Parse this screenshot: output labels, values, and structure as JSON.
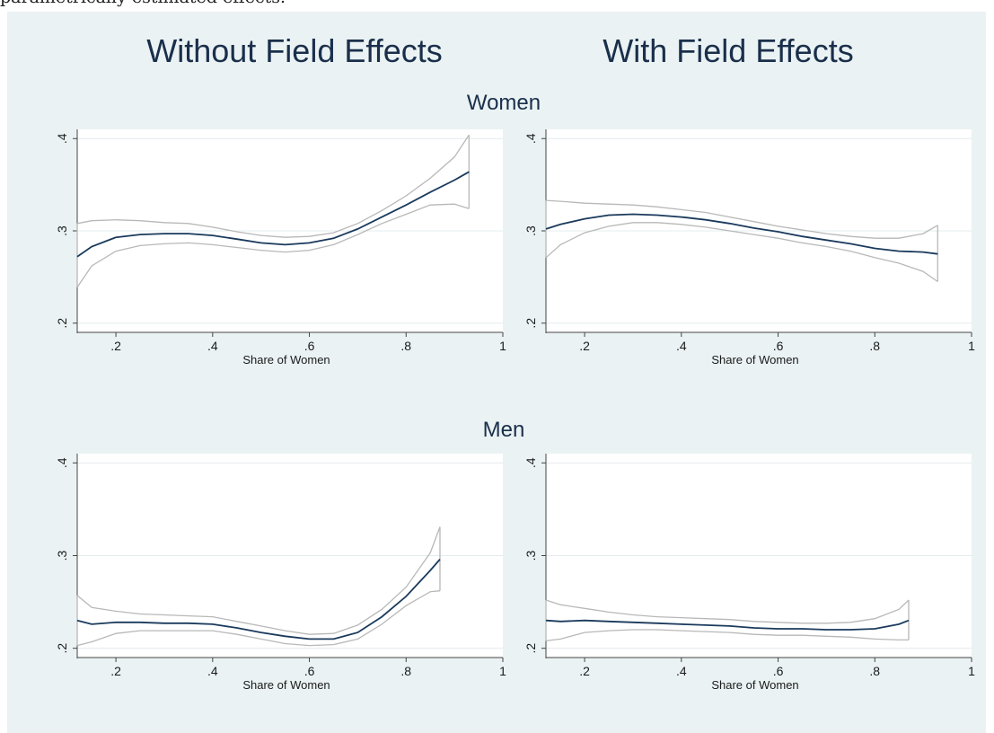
{
  "caption": "parametrically estimated effects.",
  "column_titles": [
    "Without Field Effects",
    "With Field Effects"
  ],
  "row_titles": [
    "Women",
    "Men"
  ],
  "colors": {
    "background": "#eaf2f3",
    "plot_area": "#ffffff",
    "estimate_line": "#1a3a5c",
    "ci_band": "#b8b8b8",
    "gridline": "#e4ecee",
    "axis": "#444444"
  },
  "chart_data": [
    {
      "type": "line",
      "row": "Women",
      "column": "Without Field Effects",
      "xlabel": "Share of Women",
      "xlim": [
        0.12,
        1.0
      ],
      "ylim": [
        0.19,
        0.41
      ],
      "xticks": [
        0.2,
        0.4,
        0.6,
        0.8,
        1.0
      ],
      "xtick_labels": [
        ".2",
        ".4",
        ".6",
        ".8",
        "1"
      ],
      "yticks": [
        0.2,
        0.3,
        0.4
      ],
      "ytick_labels": [
        ".2",
        ".3",
        ".4"
      ],
      "grid": true,
      "x": [
        0.12,
        0.15,
        0.2,
        0.25,
        0.3,
        0.35,
        0.4,
        0.45,
        0.5,
        0.55,
        0.6,
        0.65,
        0.7,
        0.75,
        0.8,
        0.85,
        0.9,
        0.93
      ],
      "series": [
        {
          "role": "estimate",
          "values": [
            0.272,
            0.283,
            0.293,
            0.296,
            0.297,
            0.297,
            0.295,
            0.291,
            0.287,
            0.285,
            0.287,
            0.292,
            0.302,
            0.315,
            0.328,
            0.342,
            0.355,
            0.364
          ]
        },
        {
          "role": "upper",
          "values": [
            0.308,
            0.311,
            0.312,
            0.311,
            0.309,
            0.308,
            0.304,
            0.299,
            0.295,
            0.293,
            0.294,
            0.298,
            0.308,
            0.322,
            0.338,
            0.357,
            0.38,
            0.404
          ]
        },
        {
          "role": "lower",
          "values": [
            0.239,
            0.262,
            0.278,
            0.284,
            0.286,
            0.287,
            0.285,
            0.282,
            0.279,
            0.277,
            0.279,
            0.285,
            0.296,
            0.308,
            0.318,
            0.328,
            0.329,
            0.324
          ]
        }
      ]
    },
    {
      "type": "line",
      "row": "Women",
      "column": "With Field Effects",
      "xlabel": "Share of Women",
      "xlim": [
        0.12,
        1.0
      ],
      "ylim": [
        0.19,
        0.41
      ],
      "xticks": [
        0.2,
        0.4,
        0.6,
        0.8,
        1.0
      ],
      "xtick_labels": [
        ".2",
        ".4",
        ".6",
        ".8",
        "1"
      ],
      "yticks": [
        0.2,
        0.3,
        0.4
      ],
      "ytick_labels": [
        ".2",
        ".3",
        ".4"
      ],
      "grid": true,
      "x": [
        0.12,
        0.15,
        0.2,
        0.25,
        0.3,
        0.35,
        0.4,
        0.45,
        0.5,
        0.55,
        0.6,
        0.65,
        0.7,
        0.75,
        0.8,
        0.85,
        0.9,
        0.93
      ],
      "series": [
        {
          "role": "estimate",
          "values": [
            0.302,
            0.307,
            0.313,
            0.317,
            0.318,
            0.317,
            0.315,
            0.312,
            0.308,
            0.303,
            0.299,
            0.294,
            0.29,
            0.286,
            0.281,
            0.278,
            0.277,
            0.275
          ]
        },
        {
          "role": "upper",
          "values": [
            0.333,
            0.332,
            0.33,
            0.329,
            0.328,
            0.326,
            0.323,
            0.32,
            0.315,
            0.31,
            0.305,
            0.301,
            0.297,
            0.294,
            0.292,
            0.292,
            0.297,
            0.306
          ]
        },
        {
          "role": "lower",
          "values": [
            0.271,
            0.285,
            0.298,
            0.305,
            0.309,
            0.309,
            0.307,
            0.304,
            0.3,
            0.296,
            0.292,
            0.287,
            0.283,
            0.278,
            0.271,
            0.265,
            0.256,
            0.245
          ]
        }
      ]
    },
    {
      "type": "line",
      "row": "Men",
      "column": "Without Field Effects",
      "xlabel": "Share of Women",
      "xlim": [
        0.12,
        1.0
      ],
      "ylim": [
        0.19,
        0.41
      ],
      "xticks": [
        0.2,
        0.4,
        0.6,
        0.8,
        1.0
      ],
      "xtick_labels": [
        ".2",
        ".4",
        ".6",
        ".8",
        "1"
      ],
      "yticks": [
        0.2,
        0.3,
        0.4
      ],
      "ytick_labels": [
        ".2",
        ".3",
        ".4"
      ],
      "grid": true,
      "x": [
        0.12,
        0.15,
        0.2,
        0.25,
        0.3,
        0.35,
        0.4,
        0.45,
        0.5,
        0.55,
        0.6,
        0.65,
        0.7,
        0.75,
        0.8,
        0.85,
        0.87
      ],
      "series": [
        {
          "role": "estimate",
          "values": [
            0.23,
            0.226,
            0.228,
            0.228,
            0.227,
            0.227,
            0.226,
            0.222,
            0.217,
            0.213,
            0.21,
            0.21,
            0.217,
            0.234,
            0.256,
            0.284,
            0.296
          ]
        },
        {
          "role": "upper",
          "values": [
            0.257,
            0.244,
            0.24,
            0.237,
            0.236,
            0.235,
            0.234,
            0.229,
            0.224,
            0.219,
            0.215,
            0.216,
            0.225,
            0.242,
            0.266,
            0.303,
            0.331
          ]
        },
        {
          "role": "lower",
          "values": [
            0.203,
            0.207,
            0.216,
            0.219,
            0.219,
            0.219,
            0.219,
            0.215,
            0.21,
            0.205,
            0.203,
            0.204,
            0.21,
            0.226,
            0.246,
            0.261,
            0.262
          ]
        }
      ]
    },
    {
      "type": "line",
      "row": "Men",
      "column": "With Field Effects",
      "xlabel": "Share of Women",
      "xlim": [
        0.12,
        1.0
      ],
      "ylim": [
        0.19,
        0.41
      ],
      "xticks": [
        0.2,
        0.4,
        0.6,
        0.8,
        1.0
      ],
      "xtick_labels": [
        ".2",
        ".4",
        ".6",
        ".8",
        "1"
      ],
      "yticks": [
        0.2,
        0.3,
        0.4
      ],
      "ytick_labels": [
        ".2",
        ".3",
        ".4"
      ],
      "grid": true,
      "x": [
        0.12,
        0.15,
        0.2,
        0.25,
        0.3,
        0.35,
        0.4,
        0.45,
        0.5,
        0.55,
        0.6,
        0.65,
        0.7,
        0.75,
        0.8,
        0.85,
        0.87
      ],
      "series": [
        {
          "role": "estimate",
          "values": [
            0.23,
            0.229,
            0.23,
            0.229,
            0.228,
            0.227,
            0.226,
            0.225,
            0.224,
            0.222,
            0.221,
            0.221,
            0.22,
            0.22,
            0.221,
            0.226,
            0.23
          ]
        },
        {
          "role": "upper",
          "values": [
            0.252,
            0.247,
            0.243,
            0.239,
            0.236,
            0.234,
            0.233,
            0.232,
            0.231,
            0.229,
            0.228,
            0.227,
            0.227,
            0.228,
            0.232,
            0.242,
            0.252
          ]
        },
        {
          "role": "lower",
          "values": [
            0.208,
            0.21,
            0.217,
            0.219,
            0.22,
            0.22,
            0.219,
            0.218,
            0.217,
            0.215,
            0.214,
            0.214,
            0.213,
            0.212,
            0.21,
            0.209,
            0.209
          ]
        }
      ]
    }
  ]
}
